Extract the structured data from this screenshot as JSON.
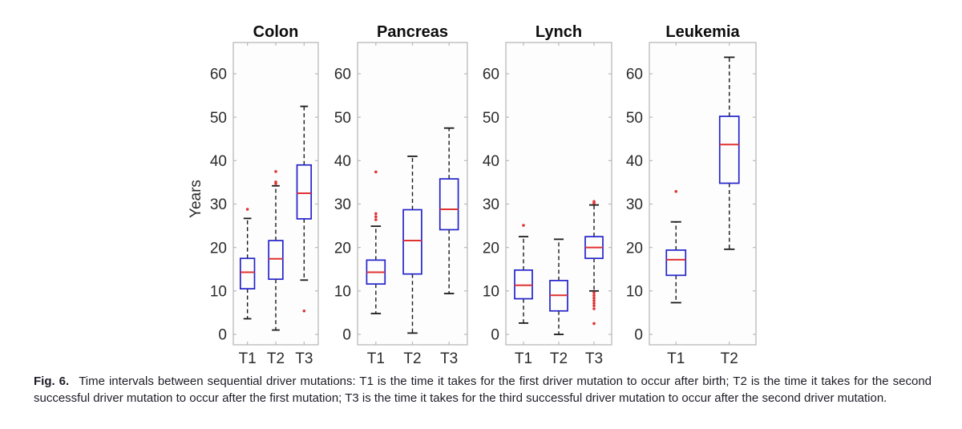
{
  "figure": {
    "ylabel": "Years",
    "caption_label": "Fig. 6.",
    "caption_text": "Time intervals between sequential driver mutations: T1 is the time it takes for the first driver mutation to occur after birth; T2 is the time it takes for the second successful driver mutation to occur after the first mutation; T3 is the time it takes for the third successful driver mutation to occur after the second driver mutation."
  },
  "colors": {
    "box": "#2323cb",
    "median": "#e03232",
    "outlier": "#e03232",
    "whisker": "#1a1a1a",
    "axis": "#b9b9b9",
    "tick_label": "#2a2a2a",
    "title": "#0d0d0d",
    "panel_bg": "#fdfdfd"
  },
  "chart_data": [
    {
      "type": "box",
      "title": "Colon",
      "ylabel": "Years",
      "categories": [
        "T1",
        "T2",
        "T3"
      ],
      "yticks": [
        0,
        10,
        20,
        30,
        40,
        50,
        60
      ],
      "ylim": [
        -2.4,
        67.2
      ],
      "boxes": [
        {
          "category": "T1",
          "whisker_low": 3.6,
          "q1": 10.5,
          "median": 14.3,
          "q3": 17.5,
          "whisker_high": 26.7,
          "outliers": [
            28.8
          ]
        },
        {
          "category": "T2",
          "whisker_low": 1.0,
          "q1": 12.7,
          "median": 17.4,
          "q3": 21.6,
          "whisker_high": 34.2,
          "outliers": [
            34.7,
            35.1,
            37.5
          ]
        },
        {
          "category": "T3",
          "whisker_low": 12.5,
          "q1": 26.6,
          "median": 32.5,
          "q3": 39.0,
          "whisker_high": 52.5,
          "outliers": [
            5.4
          ]
        }
      ]
    },
    {
      "type": "box",
      "title": "Pancreas",
      "categories": [
        "T1",
        "T2",
        "T3"
      ],
      "yticks": [
        0,
        10,
        20,
        30,
        40,
        50,
        60
      ],
      "ylim": [
        -2.4,
        67.2
      ],
      "boxes": [
        {
          "category": "T1",
          "whisker_low": 4.8,
          "q1": 11.6,
          "median": 14.3,
          "q3": 17.1,
          "whisker_high": 24.9,
          "outliers": [
            26.4,
            27.1,
            27.8,
            37.4
          ]
        },
        {
          "category": "T2",
          "whisker_low": 0.3,
          "q1": 13.9,
          "median": 21.6,
          "q3": 28.7,
          "whisker_high": 41.0,
          "outliers": []
        },
        {
          "category": "T3",
          "whisker_low": 9.4,
          "q1": 24.1,
          "median": 28.8,
          "q3": 35.8,
          "whisker_high": 47.5,
          "outliers": []
        }
      ]
    },
    {
      "type": "box",
      "title": "Lynch",
      "categories": [
        "T1",
        "T2",
        "T3"
      ],
      "yticks": [
        0,
        10,
        20,
        30,
        40,
        50,
        60
      ],
      "ylim": [
        -2.4,
        67.2
      ],
      "boxes": [
        {
          "category": "T1",
          "whisker_low": 2.6,
          "q1": 8.2,
          "median": 11.3,
          "q3": 14.8,
          "whisker_high": 22.5,
          "outliers": [
            25.1
          ]
        },
        {
          "category": "T2",
          "whisker_low": 0.0,
          "q1": 5.4,
          "median": 9.0,
          "q3": 12.4,
          "whisker_high": 21.9,
          "outliers": []
        },
        {
          "category": "T3",
          "whisker_low": 10.0,
          "q1": 17.5,
          "median": 20.0,
          "q3": 22.5,
          "whisker_high": 29.8,
          "outliers": [
            30.6,
            30.2,
            9.6,
            9.0,
            8.4,
            7.8,
            7.2,
            6.6,
            5.9,
            2.5
          ]
        }
      ]
    },
    {
      "type": "box",
      "title": "Leukemia",
      "categories": [
        "T1",
        "T2"
      ],
      "yticks": [
        0,
        10,
        20,
        30,
        40,
        50,
        60
      ],
      "ylim": [
        -2.4,
        67.2
      ],
      "boxes": [
        {
          "category": "T1",
          "whisker_low": 7.3,
          "q1": 13.6,
          "median": 17.2,
          "q3": 19.4,
          "whisker_high": 25.9,
          "outliers": [
            32.9
          ]
        },
        {
          "category": "T2",
          "whisker_low": 19.6,
          "q1": 34.8,
          "median": 43.7,
          "q3": 50.2,
          "whisker_high": 63.8,
          "outliers": []
        }
      ]
    }
  ]
}
